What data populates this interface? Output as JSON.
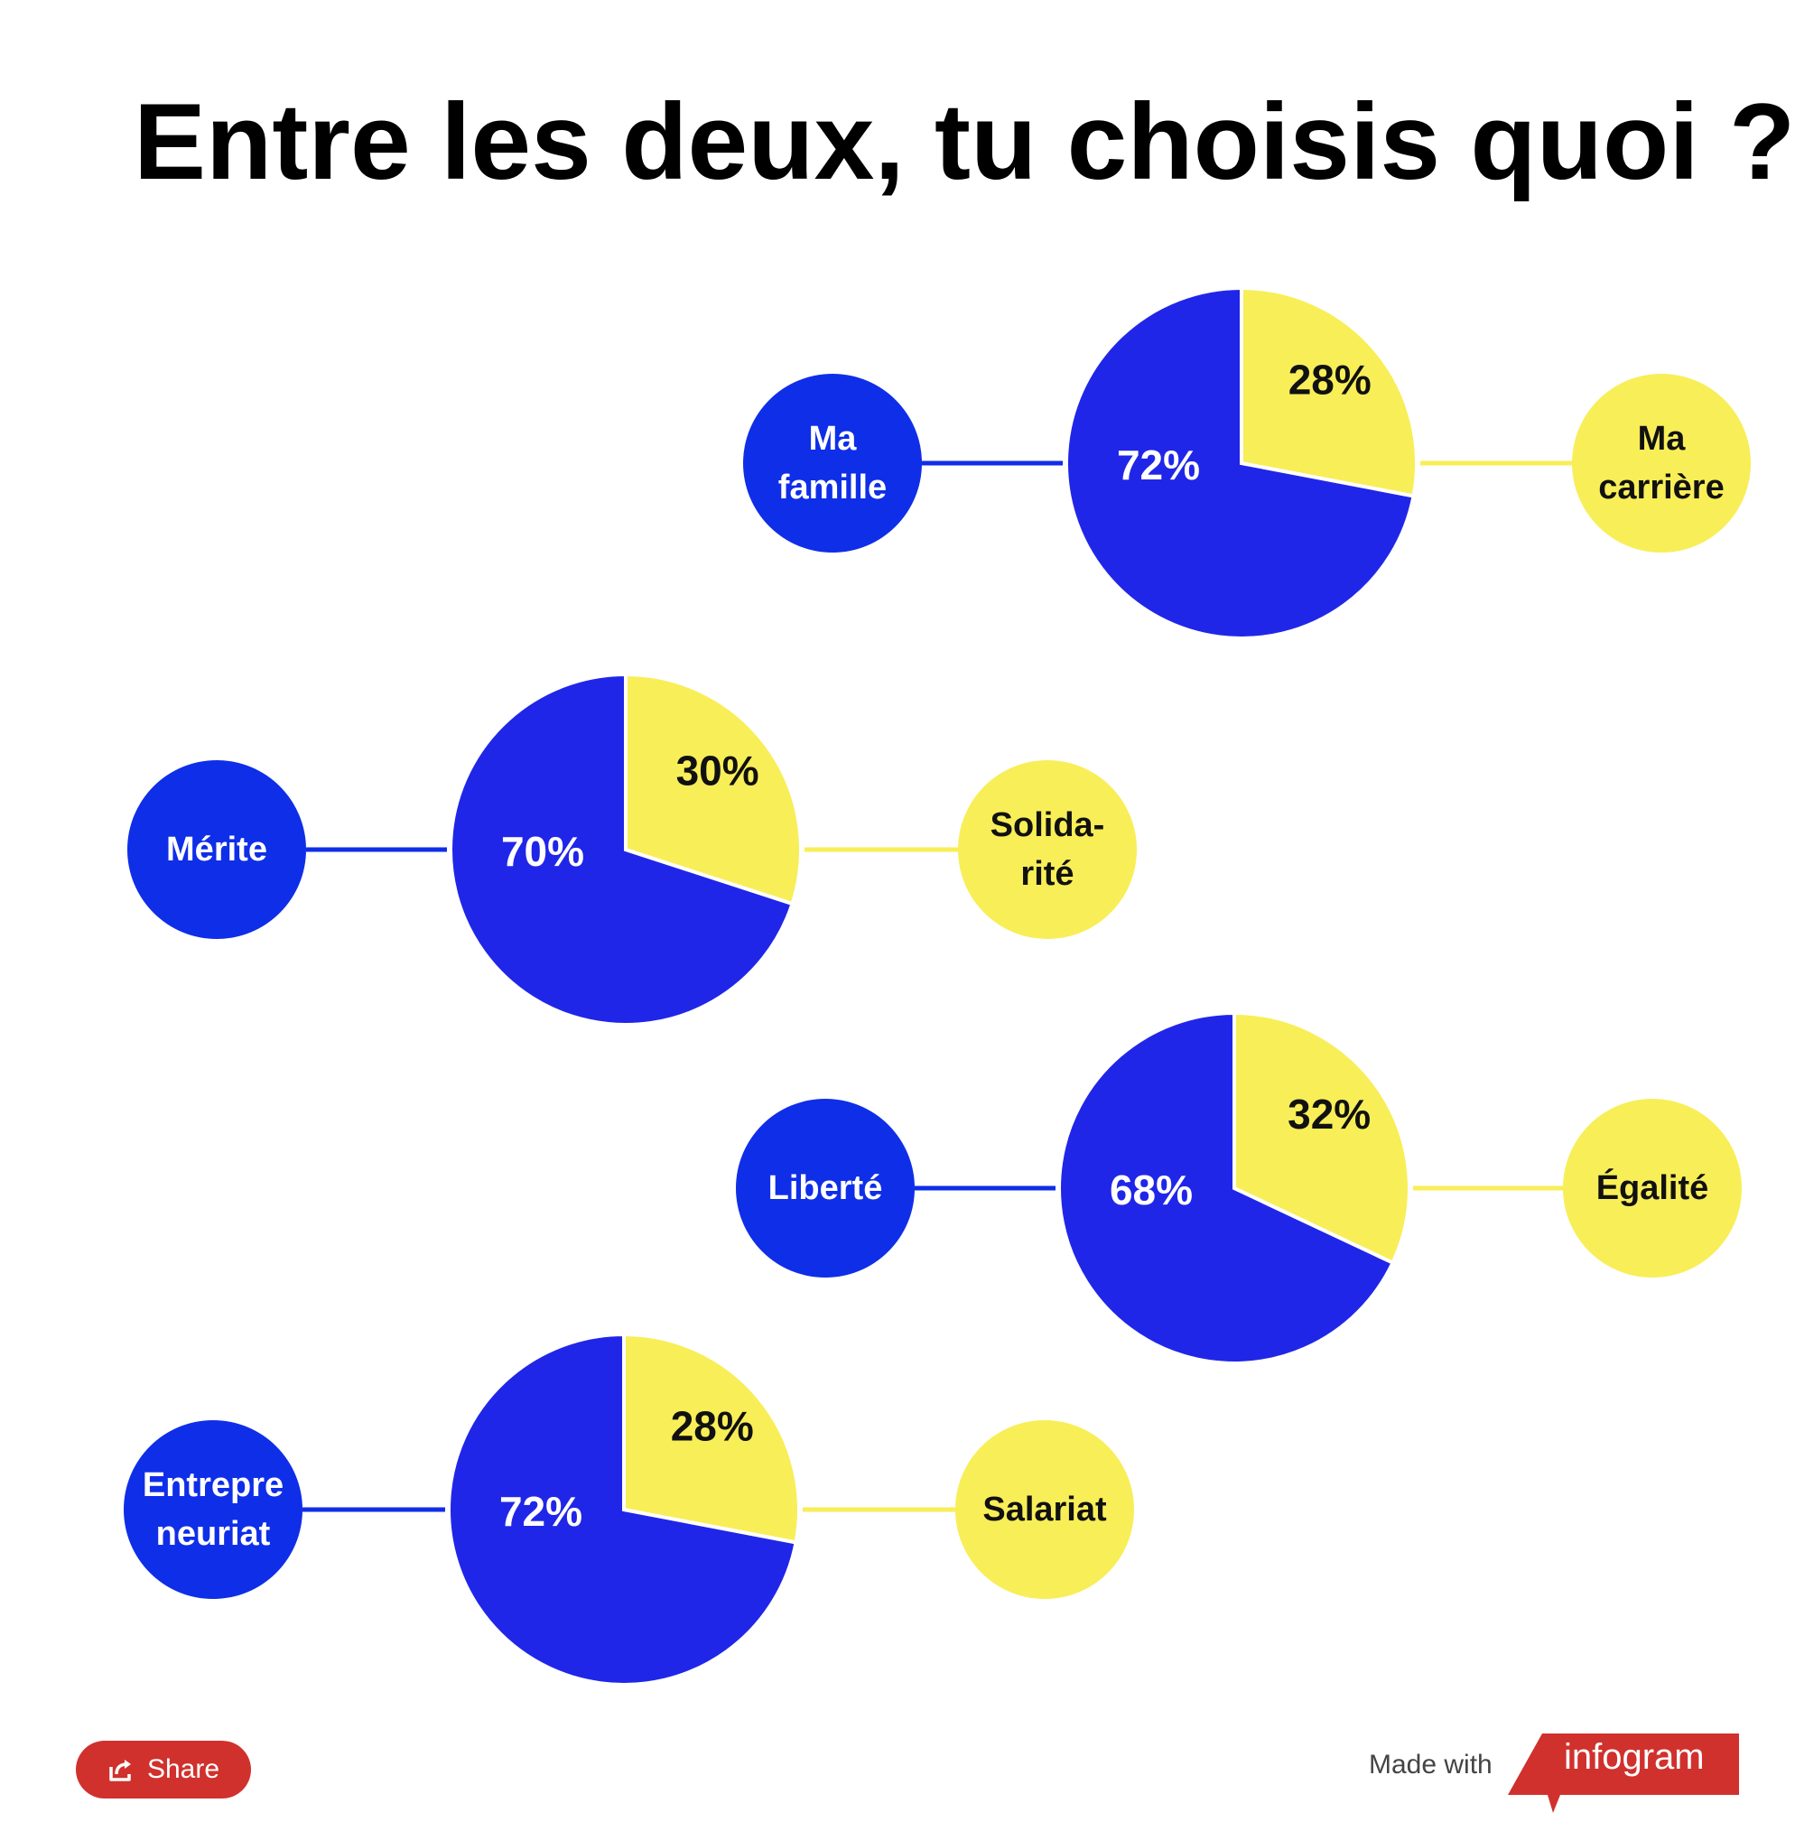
{
  "title": "Entre les deux, tu choisis quoi ?",
  "colors": {
    "blue": "#2026e8",
    "blue_bubble": "#0f2ee8",
    "yellow": "#f8ee58",
    "brand_red": "#d0312d"
  },
  "chart_data": {
    "type": "pie",
    "title": "Entre les deux, tu choisis quoi ?",
    "charts": [
      {
        "left_label": "Ma famille",
        "left_lines": [
          "Ma",
          "famille"
        ],
        "right_label": "Ma carrière",
        "right_lines": [
          "Ma",
          "carrière"
        ],
        "values": [
          72,
          28
        ],
        "value_labels": [
          "72%",
          "28%"
        ]
      },
      {
        "left_label": "Mérite",
        "left_lines": [
          "Mérite"
        ],
        "right_label": "Solidarité",
        "right_lines": [
          "Solida-",
          "rité"
        ],
        "values": [
          70,
          30
        ],
        "value_labels": [
          "70%",
          "30%"
        ]
      },
      {
        "left_label": "Liberté",
        "left_lines": [
          "Liberté"
        ],
        "right_label": "Égalité",
        "right_lines": [
          "Égalité"
        ],
        "values": [
          68,
          32
        ],
        "value_labels": [
          "68%",
          "32%"
        ]
      },
      {
        "left_label": "Entrepreneuriat",
        "left_lines": [
          "Entrepre",
          "neuriat"
        ],
        "right_label": "Salariat",
        "right_lines": [
          "Salariat"
        ],
        "values": [
          72,
          28
        ],
        "value_labels": [
          "72%",
          "28%"
        ]
      }
    ]
  },
  "footer": {
    "share_label": "Share",
    "share_icon": "share-icon",
    "made_with": "Made with",
    "brand": "infogram"
  }
}
